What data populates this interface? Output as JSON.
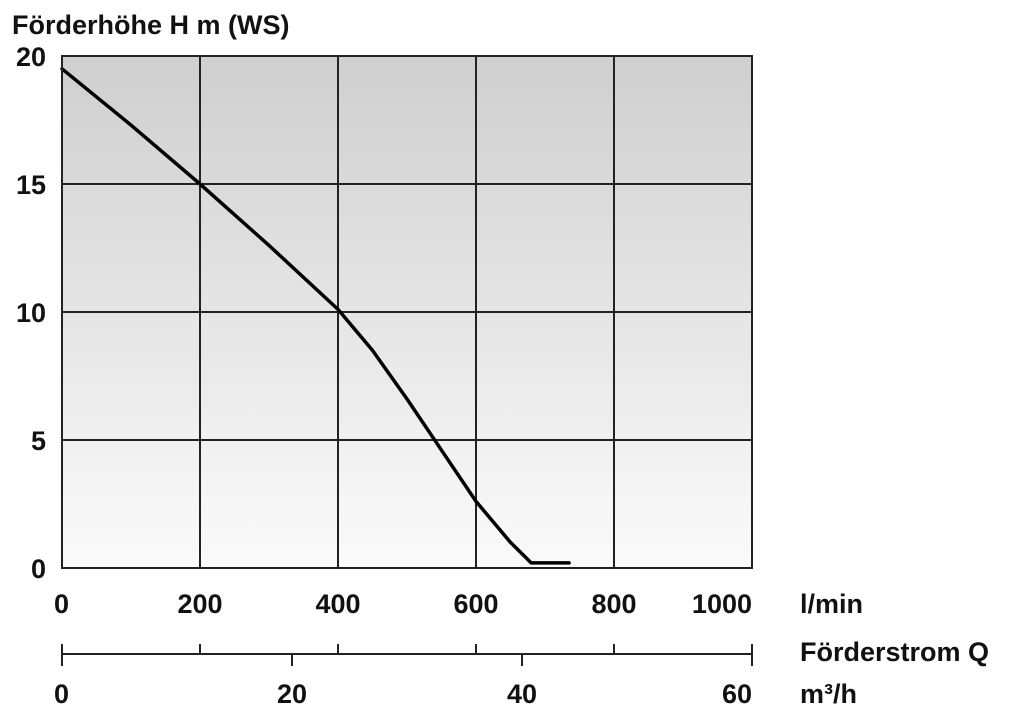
{
  "chart_data": {
    "type": "line",
    "ylabel": "Förderhöhe H m (WS)",
    "x_unit": "l/min",
    "secondary_x_label": "Förderstrom Q",
    "secondary_x_unit": "m³/h",
    "xlim": [
      0,
      1000
    ],
    "ylim": [
      0,
      20
    ],
    "secondary_xlim": [
      0,
      60
    ],
    "x_ticks": [
      0,
      200,
      400,
      600,
      800,
      1000
    ],
    "y_ticks": [
      0,
      5,
      10,
      15,
      20
    ],
    "secondary_x_ticks": [
      0,
      20,
      40,
      60
    ],
    "grid": true,
    "series": [
      {
        "x": [
          0,
          100,
          200,
          300,
          400,
          450,
          500,
          550,
          600,
          650,
          680,
          735
        ],
        "y": [
          19.5,
          17.3,
          15.0,
          12.6,
          10.1,
          8.5,
          6.6,
          4.6,
          2.6,
          1.0,
          0.2,
          0.2
        ],
        "color": "#000000"
      }
    ]
  }
}
